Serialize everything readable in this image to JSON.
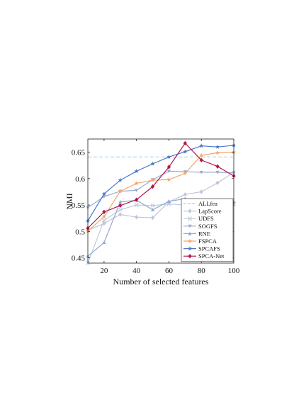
{
  "chart_data": {
    "type": "line",
    "xlabel": "Number of selected features",
    "ylabel": "NMI",
    "xlim": [
      10,
      100
    ],
    "ylim": [
      0.44,
      0.675
    ],
    "xticks": [
      20,
      40,
      60,
      80,
      100
    ],
    "yticks": [
      0.45,
      0.5,
      0.55,
      0.6,
      0.65
    ],
    "x": [
      10,
      20,
      30,
      40,
      50,
      60,
      70,
      80,
      90,
      100
    ],
    "legend_position": "bottom-right",
    "grid": false,
    "series": [
      {
        "name": "ALLfea",
        "color": "#a9d3ea",
        "marker": "none",
        "dashed": true,
        "values": [
          0.641,
          0.641,
          0.641,
          0.641,
          0.641,
          0.641,
          0.641,
          0.641,
          0.641,
          0.641
        ]
      },
      {
        "name": "LapScore",
        "color": "#c3c3dd",
        "marker": "diamond",
        "values": [
          0.502,
          0.515,
          0.532,
          0.527,
          0.526,
          0.556,
          0.57,
          0.575,
          0.592,
          0.612
        ]
      },
      {
        "name": "UDFS",
        "color": "#bccbe2",
        "marker": "cross",
        "values": [
          0.44,
          0.521,
          0.541,
          0.55,
          0.549,
          0.552,
          0.55,
          0.552,
          0.551,
          0.552
        ]
      },
      {
        "name": "SOGFS",
        "color": "#9aabd0",
        "marker": "triangle-down",
        "values": [
          0.545,
          0.566,
          0.576,
          0.578,
          0.598,
          0.614,
          0.613,
          0.612,
          0.612,
          0.611
        ]
      },
      {
        "name": "RNE",
        "color": "#94a9d0",
        "marker": "triangle-up",
        "values": [
          0.453,
          0.479,
          0.556,
          0.559,
          0.541,
          0.557,
          0.562,
          0.555,
          0.56,
          0.556
        ]
      },
      {
        "name": "FSPCA",
        "color": "#f4a66a",
        "marker": "star",
        "values": [
          0.5,
          0.528,
          0.576,
          0.591,
          0.597,
          0.598,
          0.61,
          0.644,
          0.649,
          0.65
        ]
      },
      {
        "name": "SPCAFS",
        "color": "#4a78c9",
        "marker": "star",
        "values": [
          0.52,
          0.571,
          0.597,
          0.614,
          0.628,
          0.641,
          0.651,
          0.662,
          0.66,
          0.663
        ]
      },
      {
        "name": "SPCA-Net",
        "color": "#b1174e",
        "marker": "diamond",
        "values": [
          0.506,
          0.537,
          0.549,
          0.56,
          0.585,
          0.622,
          0.667,
          0.635,
          0.623,
          0.605
        ]
      }
    ]
  }
}
